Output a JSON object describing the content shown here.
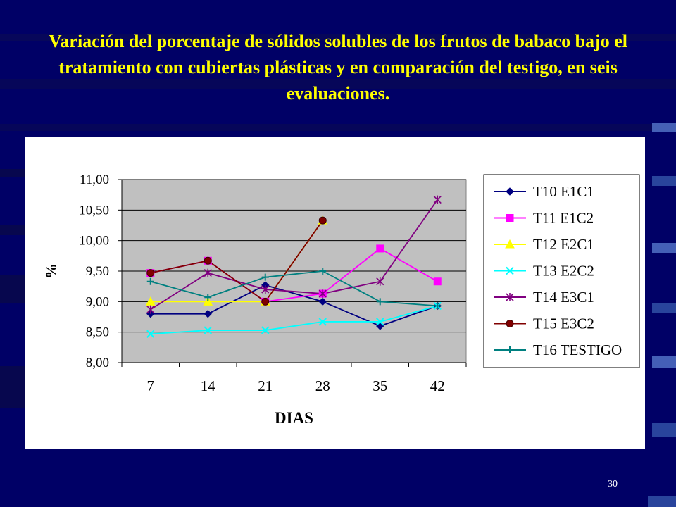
{
  "slide": {
    "title": "Variación del porcentaje de sólidos solubles de los frutos de babaco bajo el tratamiento con cubiertas plásticas y en comparación del testigo, en seis evaluaciones.",
    "page_number": "30"
  },
  "colors": {
    "background": "#000066",
    "title": "#FFFF00",
    "plot_area": "#C0C0C0",
    "chart_area": "#FFFFFF"
  },
  "chart_data": {
    "type": "line",
    "title": "",
    "xlabel": "DIAS",
    "ylabel": "%",
    "x": [
      "7",
      "14",
      "21",
      "28",
      "35",
      "42"
    ],
    "ylim": [
      8.0,
      11.0
    ],
    "yticks": [
      "8,00",
      "8,50",
      "9,00",
      "9,50",
      "10,00",
      "10,50",
      "11,00"
    ],
    "grid": true,
    "legend": "right",
    "series": [
      {
        "name": "T10 E1C1",
        "color": "#000080",
        "marker": "diamond",
        "values": [
          8.8,
          8.8,
          9.27,
          9.0,
          8.6,
          8.93
        ]
      },
      {
        "name": "T11 E1C2",
        "color": "#FF00FF",
        "marker": "square",
        "values": [
          9.47,
          9.67,
          9.0,
          9.13,
          9.87,
          9.33
        ]
      },
      {
        "name": "T12 E2C1",
        "color": "#FFFF00",
        "marker": "triangle",
        "values": [
          9.0,
          9.0,
          9.0,
          10.33,
          null,
          null
        ]
      },
      {
        "name": "T13 E2C2",
        "color": "#00FFFF",
        "marker": "x",
        "values": [
          8.47,
          8.53,
          8.53,
          8.67,
          8.67,
          8.93
        ]
      },
      {
        "name": "T14 E3C1",
        "color": "#800080",
        "marker": "star",
        "values": [
          8.87,
          9.47,
          9.2,
          9.13,
          9.33,
          10.67
        ]
      },
      {
        "name": "T15 E3C2",
        "color": "#800000",
        "marker": "circle",
        "values": [
          9.47,
          9.67,
          9.0,
          10.33,
          null,
          null
        ]
      },
      {
        "name": "T16 TESTIGO",
        "color": "#008080",
        "marker": "plus",
        "values": [
          9.33,
          9.07,
          9.4,
          9.5,
          9.0,
          8.93
        ]
      }
    ]
  }
}
